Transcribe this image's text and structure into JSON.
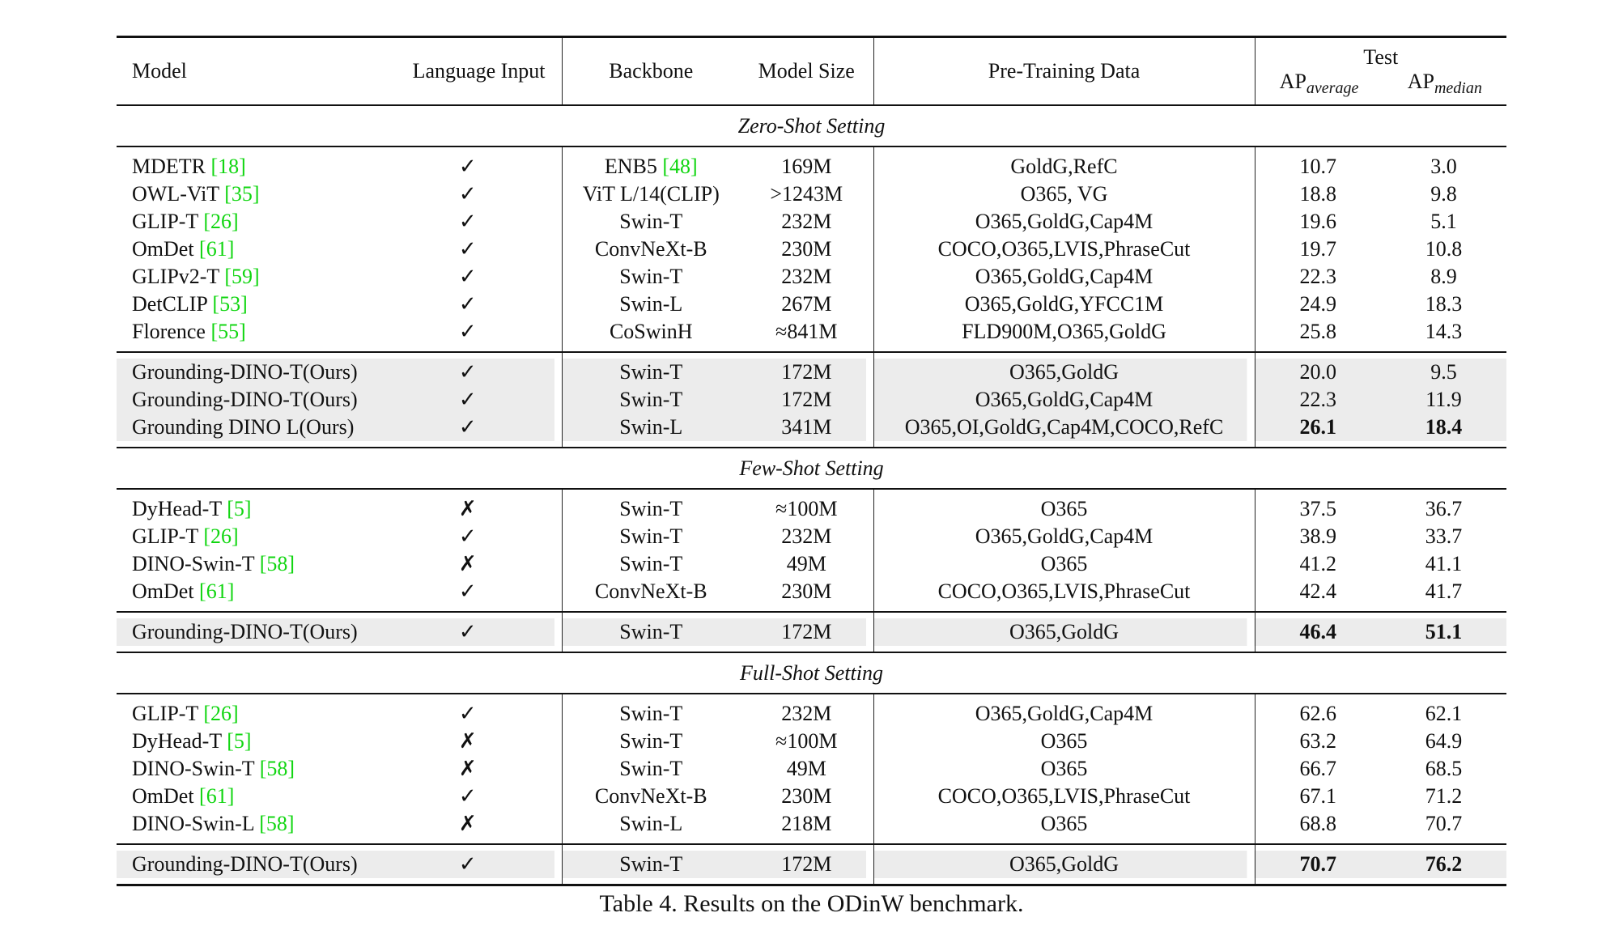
{
  "header": {
    "model": "Model",
    "language_input": "Language Input",
    "backbone": "Backbone",
    "model_size": "Model Size",
    "pretraining_data": "Pre-Training Data",
    "test": "Test",
    "ap": "AP",
    "ap_average_sub": "average",
    "ap_median_sub": "median"
  },
  "check_mark": "✓",
  "cross_mark": "✗",
  "colors": {
    "citation": "#11d611",
    "highlight": "#ececec"
  },
  "sections": [
    {
      "label": "Zero-Shot Setting",
      "groups": [
        [
          {
            "model": "MDETR",
            "cite": "[18]",
            "lang": true,
            "backbone": "ENB5",
            "backbone_cite": "[48]",
            "size": "169M",
            "data": "GoldG,RefC",
            "ap_avg": "10.7",
            "ap_med": "3.0"
          },
          {
            "model": "OWL-ViT",
            "cite": "[35]",
            "lang": true,
            "backbone": "ViT L/14(CLIP)",
            "size": ">1243M",
            "data": "O365, VG",
            "ap_avg": "18.8",
            "ap_med": "9.8"
          },
          {
            "model": "GLIP-T",
            "cite": "[26]",
            "lang": true,
            "backbone": "Swin-T",
            "size": "232M",
            "data": "O365,GoldG,Cap4M",
            "ap_avg": "19.6",
            "ap_med": "5.1"
          },
          {
            "model": "OmDet",
            "cite": "[61]",
            "lang": true,
            "backbone": "ConvNeXt-B",
            "size": "230M",
            "data": "COCO,O365,LVIS,PhraseCut",
            "ap_avg": "19.7",
            "ap_med": "10.8"
          },
          {
            "model": "GLIPv2-T",
            "cite": "[59]",
            "lang": true,
            "backbone": "Swin-T",
            "size": "232M",
            "data": "O365,GoldG,Cap4M",
            "ap_avg": "22.3",
            "ap_med": "8.9"
          },
          {
            "model": "DetCLIP",
            "cite": "[53]",
            "lang": true,
            "backbone": "Swin-L",
            "size": "267M",
            "data": "O365,GoldG,YFCC1M",
            "ap_avg": "24.9",
            "ap_med": "18.3"
          },
          {
            "model": "Florence",
            "cite": "[55]",
            "lang": true,
            "backbone": "CoSwinH",
            "size": "≈841M",
            "data": "FLD900M,O365,GoldG",
            "ap_avg": "25.8",
            "ap_med": "14.3"
          }
        ],
        [
          {
            "model": "Grounding-DINO-T(Ours)",
            "lang": true,
            "backbone": "Swin-T",
            "size": "172M",
            "data": "O365,GoldG",
            "ap_avg": "20.0",
            "ap_med": "9.5",
            "highlight": true
          },
          {
            "model": "Grounding-DINO-T(Ours)",
            "lang": true,
            "backbone": "Swin-T",
            "size": "172M",
            "data": "O365,GoldG,Cap4M",
            "ap_avg": "22.3",
            "ap_med": "11.9",
            "highlight": true
          },
          {
            "model": "Grounding DINO L(Ours)",
            "lang": true,
            "backbone": "Swin-L",
            "size": "341M",
            "data": "O365,OI,GoldG,Cap4M,COCO,RefC",
            "ap_avg": "26.1",
            "ap_med": "18.4",
            "highlight": true,
            "bold": true
          }
        ]
      ]
    },
    {
      "label": "Few-Shot Setting",
      "groups": [
        [
          {
            "model": "DyHead-T",
            "cite": "[5]",
            "lang": false,
            "backbone": "Swin-T",
            "size": "≈100M",
            "data": "O365",
            "ap_avg": "37.5",
            "ap_med": "36.7"
          },
          {
            "model": "GLIP-T",
            "cite": "[26]",
            "lang": true,
            "backbone": "Swin-T",
            "size": "232M",
            "data": "O365,GoldG,Cap4M",
            "ap_avg": "38.9",
            "ap_med": "33.7"
          },
          {
            "model": "DINO-Swin-T",
            "cite": "[58]",
            "lang": false,
            "backbone": "Swin-T",
            "size": "49M",
            "data": "O365",
            "ap_avg": "41.2",
            "ap_med": "41.1"
          },
          {
            "model": "OmDet",
            "cite": "[61]",
            "lang": true,
            "backbone": "ConvNeXt-B",
            "size": "230M",
            "data": "COCO,O365,LVIS,PhraseCut",
            "ap_avg": "42.4",
            "ap_med": "41.7"
          }
        ],
        [
          {
            "model": "Grounding-DINO-T(Ours)",
            "lang": true,
            "backbone": "Swin-T",
            "size": "172M",
            "data": "O365,GoldG",
            "ap_avg": "46.4",
            "ap_med": "51.1",
            "highlight": true,
            "bold": true
          }
        ]
      ]
    },
    {
      "label": "Full-Shot Setting",
      "groups": [
        [
          {
            "model": "GLIP-T",
            "cite": "[26]",
            "lang": true,
            "backbone": "Swin-T",
            "size": "232M",
            "data": "O365,GoldG,Cap4M",
            "ap_avg": "62.6",
            "ap_med": "62.1"
          },
          {
            "model": "DyHead-T",
            "cite": "[5]",
            "lang": false,
            "backbone": "Swin-T",
            "size": "≈100M",
            "data": "O365",
            "ap_avg": "63.2",
            "ap_med": "64.9"
          },
          {
            "model": "DINO-Swin-T",
            "cite": "[58]",
            "lang": false,
            "backbone": "Swin-T",
            "size": "49M",
            "data": "O365",
            "ap_avg": "66.7",
            "ap_med": "68.5"
          },
          {
            "model": "OmDet",
            "cite": "[61]",
            "lang": true,
            "backbone": "ConvNeXt-B",
            "size": "230M",
            "data": "COCO,O365,LVIS,PhraseCut",
            "ap_avg": "67.1",
            "ap_med": "71.2"
          },
          {
            "model": "DINO-Swin-L",
            "cite": "[58]",
            "lang": false,
            "backbone": "Swin-L",
            "size": "218M",
            "data": "O365",
            "ap_avg": "68.8",
            "ap_med": "70.7"
          }
        ],
        [
          {
            "model": "Grounding-DINO-T(Ours)",
            "lang": true,
            "backbone": "Swin-T",
            "size": "172M",
            "data": "O365,GoldG",
            "ap_avg": "70.7",
            "ap_med": "76.2",
            "highlight": true,
            "bold": true
          }
        ]
      ]
    }
  ],
  "caption": "Table 4. Results on the ODinW benchmark."
}
